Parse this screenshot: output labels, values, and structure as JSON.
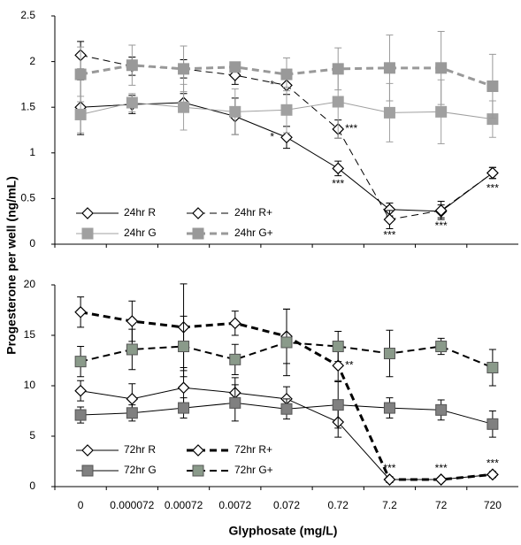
{
  "chart_data": [
    {
      "type": "line",
      "ylabel": "Progesterone per well (ng/mL)",
      "categories": [
        "0",
        "0.000072",
        "0.00072",
        "0.0072",
        "0.072",
        "0.72",
        "7.2",
        "72",
        "720"
      ],
      "ylim": [
        0,
        2.5
      ],
      "yticks": [
        0,
        0.5,
        1,
        1.5,
        2,
        2.5
      ],
      "series": [
        {
          "name": "24hr R",
          "color": "#000000",
          "marker": "diamond",
          "marker_fill": "#ffffff",
          "dash": false,
          "width": 1,
          "values": [
            1.5,
            1.53,
            1.55,
            1.4,
            1.17,
            0.83,
            0.38,
            0.36,
            0.78
          ],
          "errors": [
            0.3,
            0.1,
            0.1,
            0.2,
            0.12,
            0.08,
            0.07,
            0.07,
            0.06
          ]
        },
        {
          "name": "24hr R+",
          "color": "#000000",
          "marker": "diamond",
          "marker_fill": "#ffffff",
          "dash": true,
          "width": 1,
          "values": [
            2.07,
            1.95,
            1.92,
            1.85,
            1.74,
            1.26,
            0.27,
            0.37,
            0.78
          ],
          "errors": [
            0.15,
            0.1,
            0.1,
            0.1,
            0.1,
            0.1,
            0.1,
            0.1,
            0.06
          ]
        },
        {
          "name": "24hr G",
          "color": "#a0a0a0",
          "marker": "square",
          "marker_fill": "#a0a0a0",
          "dash": false,
          "width": 1,
          "values": [
            1.42,
            1.55,
            1.5,
            1.45,
            1.47,
            1.56,
            1.44,
            1.45,
            1.37
          ],
          "errors": [
            0.2,
            0.1,
            0.25,
            0.25,
            0.25,
            0.4,
            0.32,
            0.35,
            0.2
          ]
        },
        {
          "name": "24hr G+",
          "color": "#999999",
          "marker": "square",
          "marker_fill": "#999999",
          "dash": true,
          "width": 3,
          "values": [
            1.86,
            1.96,
            1.92,
            1.94,
            1.86,
            1.92,
            1.93,
            1.93,
            1.73
          ],
          "errors": [
            0.3,
            0.22,
            0.25,
            0.05,
            0.18,
            0.23,
            0.36,
            0.4,
            0.35
          ]
        }
      ],
      "annotations": [
        {
          "text": "*",
          "series": 1,
          "index": 4,
          "position": "left"
        },
        {
          "text": "*",
          "series": 0,
          "index": 4,
          "position": "left"
        },
        {
          "text": "***",
          "series": 1,
          "index": 5,
          "position": "right"
        },
        {
          "text": "***",
          "series": 0,
          "index": 5,
          "position": "below"
        },
        {
          "text": "***",
          "series": 1,
          "index": 6,
          "position": "below"
        },
        {
          "text": "***",
          "series": 1,
          "index": 7,
          "position": "below"
        },
        {
          "text": "***",
          "series": 0,
          "index": 8,
          "position": "below"
        }
      ]
    },
    {
      "type": "line",
      "xlabel": "Glyphosate (mg/L)",
      "categories": [
        "0",
        "0.000072",
        "0.00072",
        "0.0072",
        "0.072",
        "0.72",
        "7.2",
        "72",
        "720"
      ],
      "ylim": [
        0,
        20
      ],
      "yticks": [
        0,
        5,
        10,
        15,
        20
      ],
      "series": [
        {
          "name": "72hr R",
          "color": "#000000",
          "marker": "diamond",
          "marker_fill": "#ffffff",
          "dash": false,
          "width": 1,
          "values": [
            9.5,
            8.7,
            9.8,
            9.3,
            8.7,
            6.4,
            0.7,
            0.7,
            1.2
          ],
          "errors": [
            1.0,
            1.5,
            2.0,
            1.5,
            1.2,
            1.5,
            0.3,
            0.2,
            0.3
          ]
        },
        {
          "name": "72hr R+",
          "color": "#000000",
          "marker": "diamond",
          "marker_fill": "#ffffff",
          "dash": true,
          "width": 3,
          "values": [
            17.3,
            16.4,
            15.8,
            16.2,
            14.9,
            12.0,
            0.7,
            0.7,
            1.2
          ],
          "errors": [
            1.5,
            2.0,
            4.3,
            1.2,
            2.7,
            1.5,
            0.2,
            0.2,
            0.2
          ]
        },
        {
          "name": "72hr G",
          "color": "#000000",
          "marker": "square",
          "marker_fill": "#808080",
          "dash": false,
          "width": 1,
          "values": [
            7.1,
            7.3,
            7.8,
            8.3,
            7.7,
            8.1,
            7.8,
            7.6,
            6.2
          ],
          "errors": [
            0.8,
            0.8,
            1.0,
            1.8,
            1.0,
            2.3,
            1.0,
            1.0,
            1.3
          ]
        },
        {
          "name": "72hr G+",
          "color": "#000000",
          "marker": "square",
          "marker_fill": "#8a9a8a",
          "dash": true,
          "width": 2,
          "values": [
            12.4,
            13.6,
            13.9,
            12.6,
            14.3,
            13.9,
            13.2,
            13.9,
            11.8
          ],
          "errors": [
            1.5,
            2.0,
            3.0,
            1.5,
            3.3,
            1.5,
            2.3,
            0.8,
            1.8
          ]
        }
      ],
      "annotations": [
        {
          "text": "**",
          "series": 1,
          "index": 5,
          "position": "right"
        },
        {
          "text": "***",
          "series": 0,
          "index": 6,
          "position": "above"
        },
        {
          "text": "***",
          "series": 0,
          "index": 7,
          "position": "above"
        },
        {
          "text": "***",
          "series": 0,
          "index": 8,
          "position": "above"
        }
      ]
    }
  ]
}
